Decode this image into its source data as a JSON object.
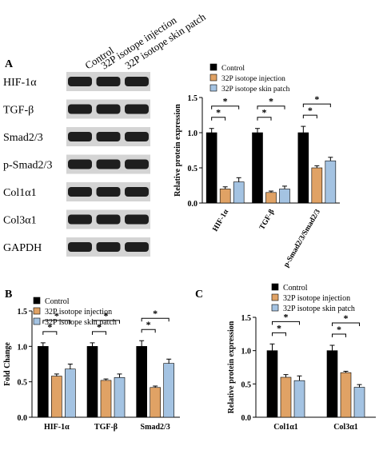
{
  "panels": {
    "A": {
      "label": "A",
      "blot": {
        "lane_headers": [
          "Control",
          "32P isotope injection",
          "32P isotope skin patch"
        ],
        "rows": [
          "HIF-1α",
          "TGF-β",
          "Smad2/3",
          "p-Smad2/3",
          "Col1α1",
          "Col3α1",
          "GAPDH"
        ]
      }
    },
    "B": {
      "label": "B"
    },
    "C": {
      "label": "C"
    }
  },
  "colors": {
    "control": "#000000",
    "injection": "#E0A265",
    "skin_patch": "#A4C3E2"
  },
  "chart_data": [
    {
      "id": "A",
      "type": "bar",
      "title": "",
      "ylabel": "Relative protein expression",
      "xlabel": "",
      "categories": [
        "HIF-1α",
        "TGF-β",
        "p-Smad2/3/Smad2/3"
      ],
      "series": [
        {
          "name": "Control",
          "values": [
            1.0,
            1.0,
            1.0
          ],
          "errors": [
            0.06,
            0.06,
            0.09
          ]
        },
        {
          "name": "32P isotope injection",
          "values": [
            0.2,
            0.15,
            0.5
          ],
          "errors": [
            0.03,
            0.02,
            0.03
          ]
        },
        {
          "name": "32P isotope skin patch",
          "values": [
            0.3,
            0.2,
            0.6
          ],
          "errors": [
            0.06,
            0.04,
            0.05
          ]
        }
      ],
      "ylim": [
        0,
        1.5
      ],
      "yticks": [
        "0.0",
        "0.5",
        "1.0",
        "1.5"
      ],
      "significance": "*",
      "legend": "top",
      "rotated_xlabels": true
    },
    {
      "id": "B",
      "type": "bar",
      "title": "",
      "ylabel": "Fold Change",
      "xlabel": "",
      "categories": [
        "HIF-1α",
        "TGF-β",
        "Smad2/3"
      ],
      "series": [
        {
          "name": "Control",
          "values": [
            1.0,
            1.0,
            1.0
          ],
          "errors": [
            0.05,
            0.05,
            0.08
          ]
        },
        {
          "name": "32P isotope injection",
          "values": [
            0.58,
            0.52,
            0.42
          ],
          "errors": [
            0.03,
            0.02,
            0.02
          ]
        },
        {
          "name": "32P isotope skin patch",
          "values": [
            0.68,
            0.56,
            0.76
          ],
          "errors": [
            0.07,
            0.05,
            0.06
          ]
        }
      ],
      "ylim": [
        0,
        1.5
      ],
      "yticks": [
        "0.0",
        "0.5",
        "1.0",
        "1.5"
      ],
      "significance": "*",
      "legend": "top-left",
      "rotated_xlabels": false
    },
    {
      "id": "C",
      "type": "bar",
      "title": "",
      "ylabel": "Relative protein expression",
      "xlabel": "",
      "categories": [
        "Col1α1",
        "Col3α1"
      ],
      "series": [
        {
          "name": "Control",
          "values": [
            1.0,
            1.0
          ],
          "errors": [
            0.1,
            0.08
          ]
        },
        {
          "name": "32P isotope injection",
          "values": [
            0.6,
            0.67
          ],
          "errors": [
            0.04,
            0.02
          ]
        },
        {
          "name": "32P isotope skin patch",
          "values": [
            0.55,
            0.45
          ],
          "errors": [
            0.07,
            0.04
          ]
        }
      ],
      "ylim": [
        0,
        1.5
      ],
      "yticks": [
        "0.0",
        "0.5",
        "1.0",
        "1.5"
      ],
      "significance": "*",
      "legend": "top-left",
      "rotated_xlabels": false
    }
  ]
}
